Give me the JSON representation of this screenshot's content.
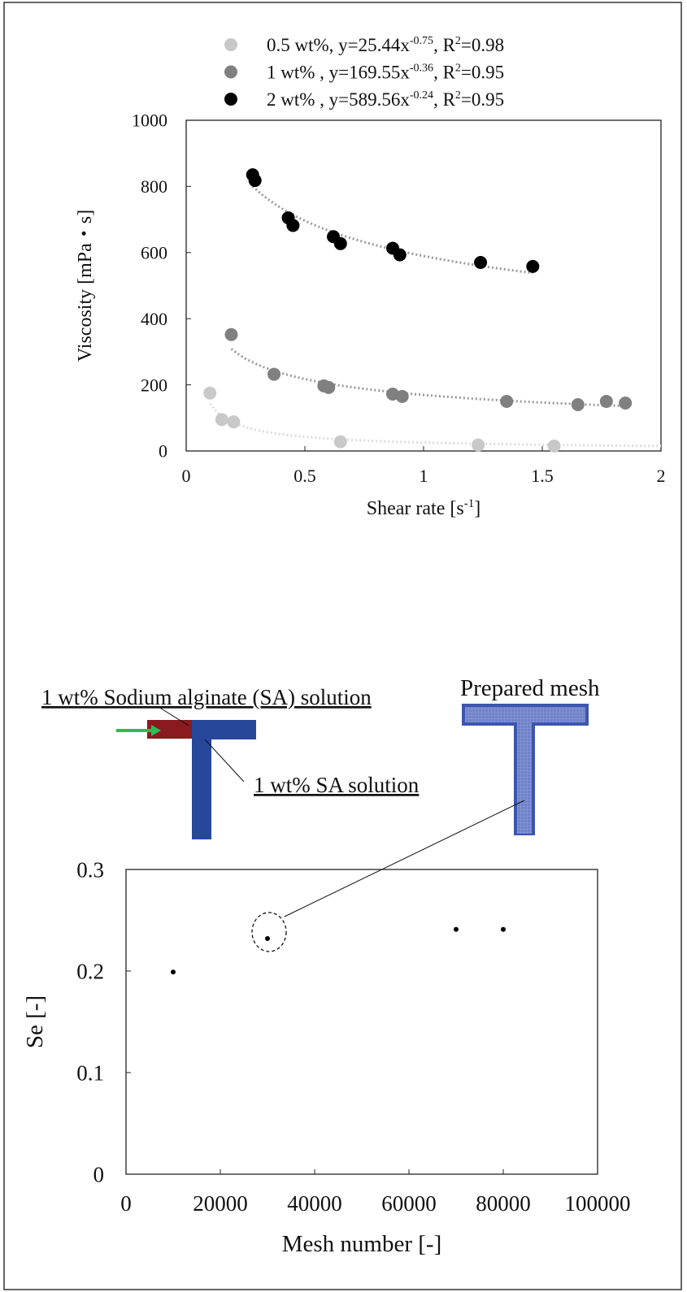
{
  "chart_data": [
    {
      "type": "scatter",
      "xlabel_parts": [
        "Shear rate [s",
        "-1",
        "]"
      ],
      "ylabel": "Viscosity [mPa・s]",
      "xlim": [
        0,
        2
      ],
      "xticks": [
        0,
        0.5,
        1,
        1.5,
        2
      ],
      "ylim": [
        0,
        1000
      ],
      "yticks": [
        0,
        200,
        400,
        600,
        800,
        1000
      ],
      "series": [
        {
          "label_parts": [
            "0.5 wt%, y=25.44x",
            "-0.75",
            ", R",
            "2",
            "=0.98"
          ],
          "color": "#c8c8c8",
          "fit": {
            "a": 25.44,
            "b": -0.75,
            "from": 0.1,
            "to": 2
          },
          "x": [
            0.1,
            0.15,
            0.2,
            0.65,
            1.23,
            1.55
          ],
          "values": [
            175,
            95,
            88,
            28,
            18,
            15
          ]
        },
        {
          "label_parts": [
            "1 wt% , y=169.55x",
            "-0.36",
            ", R",
            "2",
            "=0.95"
          ],
          "color": "#808080",
          "fit": {
            "a": 169.55,
            "b": -0.36,
            "from": 0.19,
            "to": 1.85
          },
          "x": [
            0.19,
            0.37,
            0.58,
            0.6,
            0.87,
            0.91,
            1.35,
            1.65,
            1.77,
            1.85
          ],
          "values": [
            352,
            232,
            197,
            192,
            172,
            165,
            150,
            140,
            150,
            145
          ]
        },
        {
          "label_parts": [
            "2 wt% ,  y=589.56x",
            "-0.24",
            ", R",
            "2",
            "=0.95"
          ],
          "color": "#000000",
          "fit": {
            "a": 589.56,
            "b": -0.24,
            "from": 0.28,
            "to": 1.46
          },
          "x": [
            0.28,
            0.29,
            0.43,
            0.45,
            0.62,
            0.65,
            0.87,
            0.9,
            1.24,
            1.46
          ],
          "values": [
            835,
            818,
            705,
            682,
            648,
            627,
            613,
            593,
            570,
            558
          ]
        }
      ]
    },
    {
      "type": "scatter",
      "xlabel": "Mesh number [-]",
      "ylabel": "Se   [-]",
      "xlim": [
        0,
        100000
      ],
      "xticks": [
        0,
        20000,
        40000,
        60000,
        80000,
        100000
      ],
      "ylim": [
        0,
        0.3
      ],
      "yticks": [
        0,
        0.1,
        0.2,
        0.3
      ],
      "series": [
        {
          "color": "#000000",
          "x": [
            10000,
            30000,
            70000,
            80000
          ],
          "values": [
            0.199,
            0.232,
            0.241,
            0.241
          ]
        }
      ],
      "annotations": [
        "1 wt% Sodium alginate (SA) solution",
        "1 wt% SA solution",
        "Prepared mesh"
      ]
    }
  ]
}
